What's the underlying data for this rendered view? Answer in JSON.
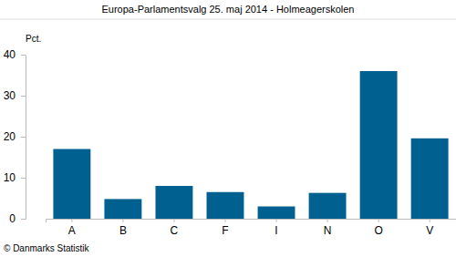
{
  "chart_data": {
    "type": "bar",
    "title": "Europa-Parlamentsvalg 25. maj 2014 - Holmeagerskolen",
    "y_label": "Pct.",
    "source": "© Danmarks Statistik",
    "categories": [
      "A",
      "B",
      "C",
      "F",
      "I",
      "N",
      "O",
      "V"
    ],
    "values": [
      17,
      4.8,
      8,
      6.5,
      3,
      6.3,
      36,
      19.6
    ],
    "color": "#00608f",
    "ylim": [
      0,
      40
    ],
    "yticks": [
      0,
      10,
      20,
      30,
      40
    ],
    "grid": false
  }
}
